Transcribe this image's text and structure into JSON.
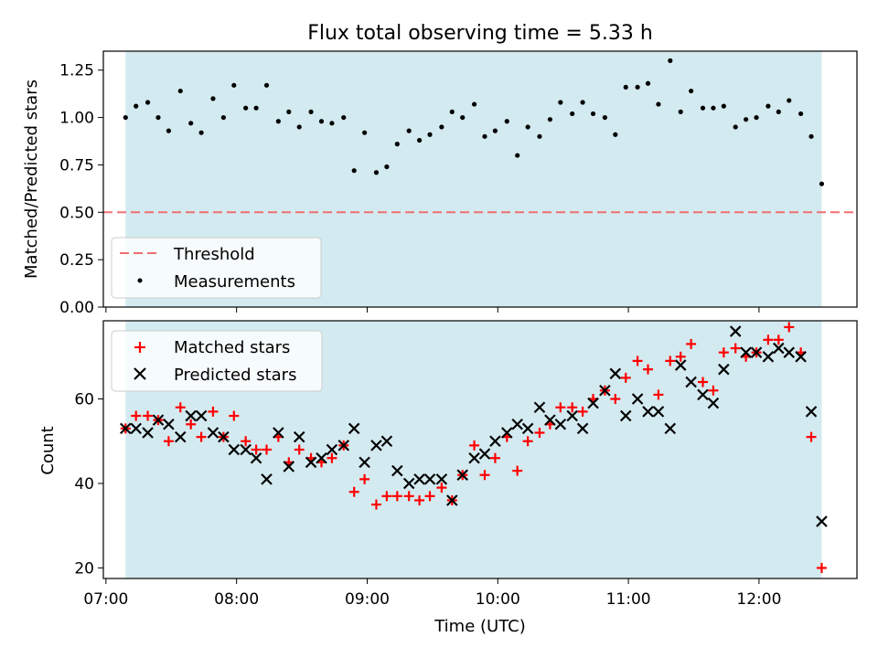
{
  "chart_data": [
    {
      "type": "scatter",
      "title": "Flux total observing time = 5.33 h",
      "ylabel": "Matched/Predicted stars",
      "xlabel": "",
      "ylim": [
        0,
        1.35
      ],
      "xlim_hours": [
        6.98,
        12.75
      ],
      "observing_window_hours": [
        7.15,
        12.48
      ],
      "yticks": [
        0.0,
        0.25,
        0.5,
        0.75,
        1.0,
        1.25
      ],
      "ytick_labels": [
        "0.00",
        "0.25",
        "0.50",
        "0.75",
        "1.00",
        "1.25"
      ],
      "legend": {
        "position": "lower-left",
        "threshold_label": "Threshold",
        "measurements_label": "Measurements"
      },
      "threshold": {
        "name": "Threshold",
        "value": 0.5,
        "color": "#f07070",
        "style": "dashed"
      },
      "series": [
        {
          "name": "Measurements",
          "marker": "dot",
          "color": "#000000",
          "x": [
            7.15,
            7.23,
            7.32,
            7.4,
            7.48,
            7.57,
            7.65,
            7.73,
            7.82,
            7.9,
            7.98,
            8.07,
            8.15,
            8.23,
            8.32,
            8.4,
            8.48,
            8.57,
            8.65,
            8.73,
            8.82,
            8.9,
            8.98,
            9.07,
            9.15,
            9.23,
            9.32,
            9.4,
            9.48,
            9.57,
            9.65,
            9.73,
            9.82,
            9.9,
            9.98,
            10.07,
            10.15,
            10.23,
            10.32,
            10.4,
            10.48,
            10.57,
            10.65,
            10.73,
            10.82,
            10.9,
            10.98,
            11.07,
            11.15,
            11.23,
            11.32,
            11.4,
            11.48,
            11.57,
            11.65,
            11.73,
            11.82,
            11.9,
            11.98,
            12.07,
            12.15,
            12.23,
            12.32,
            12.4,
            12.48
          ],
          "y": [
            1.0,
            1.06,
            1.08,
            1.0,
            0.93,
            1.14,
            0.97,
            0.92,
            1.1,
            1.0,
            1.17,
            1.05,
            1.05,
            1.17,
            0.98,
            1.03,
            0.95,
            1.03,
            0.98,
            0.97,
            1.0,
            0.72,
            0.92,
            0.71,
            0.74,
            0.86,
            0.93,
            0.88,
            0.91,
            0.95,
            1.03,
            1.0,
            1.07,
            0.9,
            0.93,
            0.98,
            0.8,
            0.95,
            0.9,
            0.99,
            1.08,
            1.02,
            1.08,
            1.02,
            1.0,
            0.91,
            1.16,
            1.16,
            1.18,
            1.07,
            1.3,
            1.03,
            1.14,
            1.05,
            1.05,
            1.06,
            0.95,
            0.99,
            1.0,
            1.06,
            1.03,
            1.09,
            1.02,
            0.9,
            0.65
          ]
        }
      ]
    },
    {
      "type": "scatter",
      "title": "",
      "ylabel": "Count",
      "xlabel": "Time (UTC)",
      "ylim": [
        17.5,
        78.5
      ],
      "xlim_hours": [
        6.98,
        12.75
      ],
      "observing_window_hours": [
        7.15,
        12.48
      ],
      "yticks": [
        20,
        40,
        60
      ],
      "ytick_labels": [
        "20",
        "40",
        "60"
      ],
      "xticks_hours": [
        7,
        8,
        9,
        10,
        11,
        12
      ],
      "xtick_labels": [
        "07:00",
        "08:00",
        "09:00",
        "10:00",
        "11:00",
        "12:00"
      ],
      "legend": {
        "position": "upper-left",
        "matched_label": "Matched stars",
        "predicted_label": "Predicted stars"
      },
      "series": [
        {
          "name": "Matched stars",
          "marker": "plus",
          "color": "#ff0000",
          "x": [
            7.15,
            7.23,
            7.32,
            7.4,
            7.48,
            7.57,
            7.65,
            7.73,
            7.82,
            7.9,
            7.98,
            8.07,
            8.15,
            8.23,
            8.32,
            8.4,
            8.48,
            8.57,
            8.65,
            8.73,
            8.82,
            8.9,
            8.98,
            9.07,
            9.15,
            9.23,
            9.32,
            9.4,
            9.48,
            9.57,
            9.65,
            9.73,
            9.82,
            9.9,
            9.98,
            10.07,
            10.15,
            10.23,
            10.32,
            10.4,
            10.48,
            10.57,
            10.65,
            10.73,
            10.82,
            10.9,
            10.98,
            11.07,
            11.15,
            11.23,
            11.32,
            11.4,
            11.48,
            11.57,
            11.65,
            11.73,
            11.82,
            11.9,
            11.98,
            12.07,
            12.15,
            12.23,
            12.32,
            12.4,
            12.48
          ],
          "y": [
            53,
            56,
            56,
            55,
            50,
            58,
            54,
            51,
            57,
            51,
            56,
            50,
            48,
            48,
            51,
            45,
            48,
            46,
            45,
            46,
            49,
            38,
            41,
            35,
            37,
            37,
            37,
            36,
            37,
            39,
            36,
            42,
            49,
            42,
            46,
            51,
            43,
            50,
            52,
            54,
            58,
            58,
            57,
            60,
            62,
            60,
            65,
            69,
            67,
            61,
            69,
            70,
            73,
            64,
            62,
            71,
            72,
            70,
            71,
            74,
            74,
            77,
            71,
            51,
            20
          ]
        },
        {
          "name": "Predicted stars",
          "marker": "x",
          "color": "#000000",
          "x": [
            7.15,
            7.23,
            7.32,
            7.4,
            7.48,
            7.57,
            7.65,
            7.73,
            7.82,
            7.9,
            7.98,
            8.07,
            8.15,
            8.23,
            8.32,
            8.4,
            8.48,
            8.57,
            8.65,
            8.73,
            8.82,
            8.9,
            8.98,
            9.07,
            9.15,
            9.23,
            9.32,
            9.4,
            9.48,
            9.57,
            9.65,
            9.73,
            9.82,
            9.9,
            9.98,
            10.07,
            10.15,
            10.23,
            10.32,
            10.4,
            10.48,
            10.57,
            10.65,
            10.73,
            10.82,
            10.9,
            10.98,
            11.07,
            11.15,
            11.23,
            11.32,
            11.4,
            11.48,
            11.57,
            11.65,
            11.73,
            11.82,
            11.9,
            11.98,
            12.07,
            12.15,
            12.23,
            12.32,
            12.4,
            12.48
          ],
          "y": [
            53,
            53,
            52,
            55,
            54,
            51,
            56,
            56,
            52,
            51,
            48,
            48,
            46,
            41,
            52,
            44,
            51,
            45,
            46,
            48,
            49,
            53,
            45,
            49,
            50,
            43,
            40,
            41,
            41,
            41,
            36,
            42,
            46,
            47,
            50,
            52,
            54,
            53,
            58,
            55,
            54,
            56,
            53,
            59,
            62,
            66,
            56,
            60,
            57,
            57,
            53,
            68,
            64,
            61,
            59,
            67,
            76,
            71,
            71,
            70,
            72,
            71,
            70,
            57,
            31
          ]
        }
      ]
    }
  ]
}
